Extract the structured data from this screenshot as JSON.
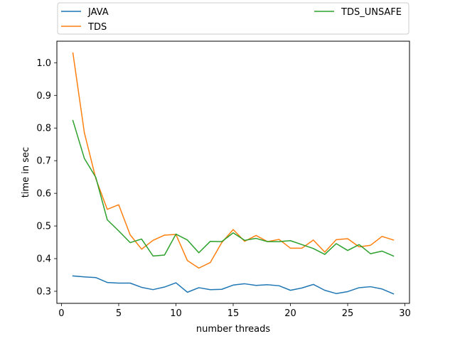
{
  "chart_data": {
    "type": "line",
    "title": "",
    "xlabel": "number threads",
    "ylabel": "time in sec",
    "xlim": [
      -0.4,
      30.4
    ],
    "ylim": [
      0.263,
      1.066
    ],
    "xticks": [
      0,
      5,
      10,
      15,
      20,
      25,
      30
    ],
    "yticks": [
      0.3,
      0.4,
      0.5,
      0.6,
      0.7,
      0.8,
      0.9,
      1.0
    ],
    "xtick_labels": [
      "0",
      "5",
      "10",
      "15",
      "20",
      "25",
      "30"
    ],
    "ytick_labels": [
      "0.3",
      "0.4",
      "0.5",
      "0.6",
      "0.7",
      "0.8",
      "0.9",
      "1.0"
    ],
    "grid": false,
    "legend_position": "above plot, two columns",
    "x": [
      1,
      2,
      3,
      4,
      5,
      6,
      7,
      8,
      9,
      10,
      11,
      12,
      13,
      14,
      15,
      16,
      17,
      18,
      19,
      20,
      21,
      22,
      23,
      24,
      25,
      26,
      27,
      28,
      29
    ],
    "series": [
      {
        "name": "JAVA",
        "color": "#1f77b4",
        "values": [
          0.347,
          0.344,
          0.342,
          0.327,
          0.325,
          0.325,
          0.312,
          0.305,
          0.313,
          0.326,
          0.297,
          0.311,
          0.305,
          0.306,
          0.319,
          0.323,
          0.318,
          0.32,
          0.317,
          0.303,
          0.31,
          0.321,
          0.303,
          0.293,
          0.299,
          0.311,
          0.314,
          0.307,
          0.292
        ]
      },
      {
        "name": "TDS",
        "color": "#ff7f0e",
        "values": [
          1.03,
          0.786,
          0.645,
          0.551,
          0.565,
          0.473,
          0.429,
          0.456,
          0.472,
          0.474,
          0.394,
          0.371,
          0.388,
          0.449,
          0.489,
          0.453,
          0.471,
          0.452,
          0.459,
          0.432,
          0.432,
          0.457,
          0.42,
          0.458,
          0.461,
          0.436,
          0.441,
          0.468,
          0.457
        ]
      },
      {
        "name": "TDS_UNSAFE",
        "color": "#2ca02c",
        "values": [
          0.823,
          0.707,
          0.649,
          0.519,
          0.485,
          0.449,
          0.46,
          0.408,
          0.411,
          0.475,
          0.457,
          0.418,
          0.453,
          0.452,
          0.479,
          0.456,
          0.462,
          0.452,
          0.452,
          0.455,
          0.443,
          0.431,
          0.413,
          0.446,
          0.425,
          0.443,
          0.415,
          0.423,
          0.408
        ]
      }
    ]
  }
}
